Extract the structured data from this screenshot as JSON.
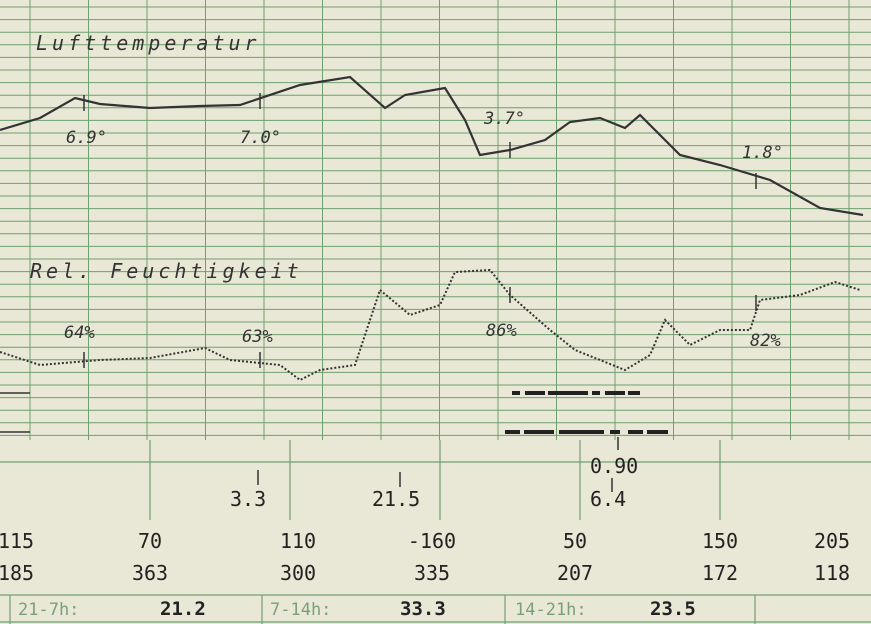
{
  "temperature": {
    "title": "Lufttemperatur",
    "labels": [
      "6.9°",
      "7.0°",
      "3.7°",
      "1.8°"
    ]
  },
  "humidity": {
    "title": "Rel. Feuchtigkeit",
    "labels": [
      "64%",
      "63%",
      "86%",
      "82%"
    ]
  },
  "precipitation": [
    "3.3",
    "21.5",
    "0.90",
    "6.4"
  ],
  "table": {
    "rows": [
      [
        "115",
        "70",
        "110",
        "-160",
        "50",
        "150",
        "205"
      ],
      [
        "185",
        "363",
        "300",
        "335",
        "207",
        "172",
        "118"
      ]
    ]
  },
  "periods": [
    {
      "label": "21-7h:",
      "value": "21.2"
    },
    {
      "label": "7-14h:",
      "value": "33.3"
    },
    {
      "label": "14-21h:",
      "value": "23.5"
    }
  ]
}
